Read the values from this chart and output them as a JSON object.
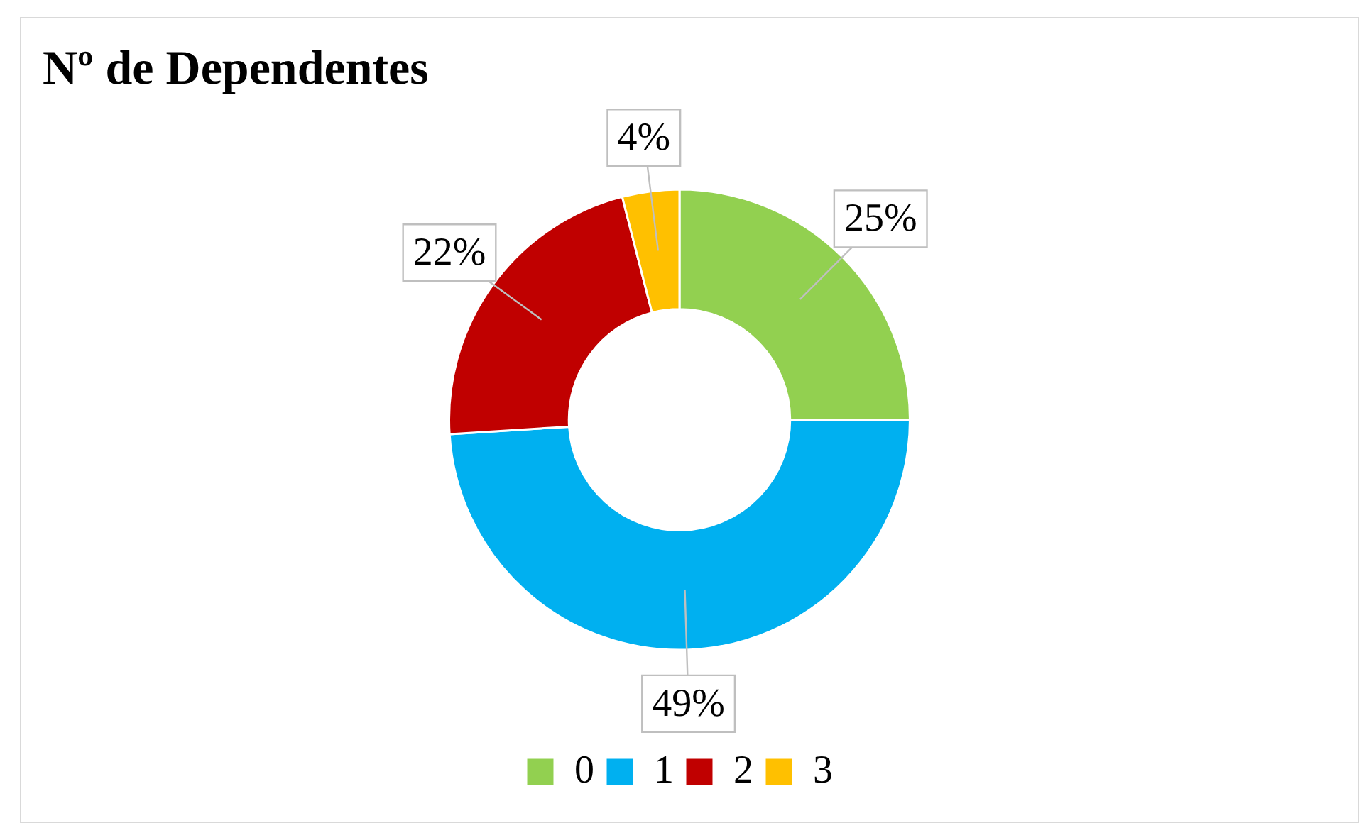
{
  "chart_data": {
    "type": "donut",
    "title": "Nº de Dependentes",
    "categories": [
      "0",
      "1",
      "2",
      "3"
    ],
    "values": [
      25,
      49,
      22,
      4
    ],
    "value_labels": [
      "25%",
      "49%",
      "22%",
      "4%"
    ],
    "colors": [
      "#92d050",
      "#00b0f0",
      "#c00000",
      "#ffc000"
    ],
    "legend": "bottom"
  }
}
